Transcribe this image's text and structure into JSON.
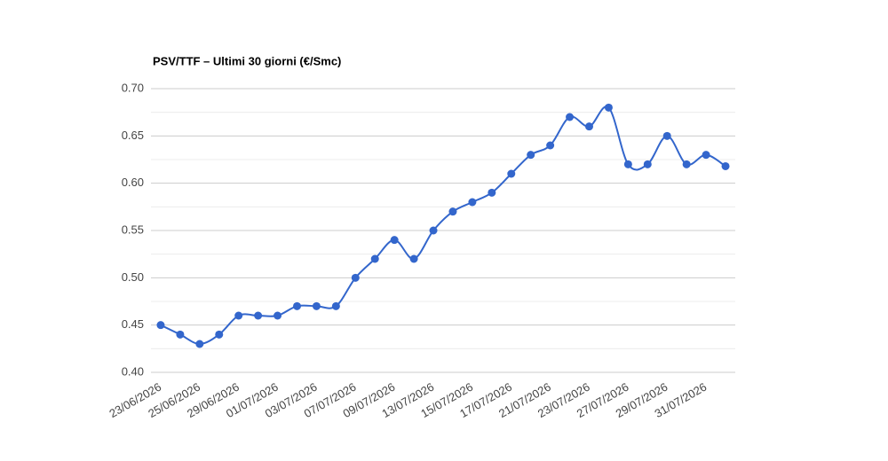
{
  "chart_data": {
    "type": "line",
    "title": "PSV/TTF – Ultimi 30 giorni (€/Smc)",
    "categories": [
      "23/06/2026",
      null,
      "25/06/2026",
      null,
      "29/06/2026",
      null,
      "01/07/2026",
      null,
      "03/07/2026",
      null,
      "07/07/2026",
      null,
      "09/07/2026",
      null,
      "13/07/2026",
      null,
      "15/07/2026",
      null,
      "17/07/2026",
      null,
      "21/07/2026",
      null,
      "23/07/2026",
      null,
      "27/07/2026",
      null,
      "29/07/2026",
      null,
      "31/07/2026",
      null
    ],
    "series": [
      {
        "name": "PSV/TTF",
        "color": "#3366cc",
        "values": [
          0.45,
          0.44,
          0.43,
          0.44,
          0.46,
          0.46,
          0.46,
          0.47,
          0.47,
          0.47,
          0.5,
          0.52,
          0.54,
          0.52,
          0.55,
          0.57,
          0.58,
          0.59,
          0.61,
          0.63,
          0.64,
          0.67,
          0.66,
          0.68,
          0.62,
          0.62,
          0.65,
          0.62,
          0.63,
          0.618
        ]
      }
    ],
    "ylim": [
      0.4,
      0.7
    ],
    "yticks": [
      {
        "value": 0.4,
        "label": "0.40"
      },
      {
        "value": 0.45,
        "label": "0.45"
      },
      {
        "value": 0.5,
        "label": "0.50"
      },
      {
        "value": 0.55,
        "label": "0.55"
      },
      {
        "value": 0.6,
        "label": "0.60"
      },
      {
        "value": 0.65,
        "label": "0.65"
      },
      {
        "value": 0.7,
        "label": "0.70"
      }
    ],
    "grid": true,
    "smooth": true
  }
}
